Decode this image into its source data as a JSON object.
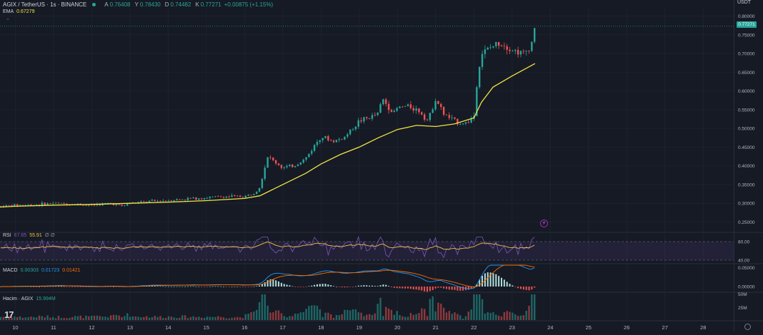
{
  "header": {
    "symbol": "AGIX / TetherUS · 1s · BINANCE",
    "ohlc": [
      {
        "k": "A",
        "v": "0.76408"
      },
      {
        "k": "Y",
        "v": "0.78430"
      },
      {
        "k": "D",
        "v": "0.74482"
      },
      {
        "k": "K",
        "v": "0.77271"
      }
    ],
    "change": "+0.00875 (+1.15%)"
  },
  "ema": {
    "label": "EMA",
    "value": "0.67279"
  },
  "rsi": {
    "label": "RSI",
    "value1": "67.65",
    "value2": "55.91",
    "extra": "∅ ∅"
  },
  "macd": {
    "label": "MACD",
    "value1": "0.00303",
    "value2": "0.01723",
    "value3": "0.01421"
  },
  "volume": {
    "label": "Hacim · AGIX",
    "value": "15.994M"
  },
  "price_axis": {
    "currency": "USDT",
    "current_price": "0.77271",
    "ticks": [
      "0.80000",
      "0.75000",
      "0.70000",
      "0.65000",
      "0.60000",
      "0.55000",
      "0.50000",
      "0.45000",
      "0.40000",
      "0.35000",
      "0.30000",
      "0.25000"
    ]
  },
  "rsi_axis": [
    "80.00",
    "40.00"
  ],
  "macd_axis": [
    "0.05000",
    "0.00000"
  ],
  "volume_axis": [
    "50M",
    "25M"
  ],
  "time_axis": [
    "10",
    "11",
    "12",
    "13",
    "14",
    "15",
    "16",
    "17",
    "18",
    "19",
    "20",
    "21",
    "22",
    "23",
    "24",
    "25",
    "26",
    "27",
    "28"
  ],
  "colors": {
    "up": "#26a69a",
    "down": "#ef5350",
    "ema": "#f0e442",
    "rsi": "#7e57c2",
    "rsi_ma": "#f0c040",
    "macd": "#2196f3",
    "signal": "#ff6d00"
  },
  "chart_data": {
    "type": "line",
    "ylim": [
      0.23,
      0.82
    ],
    "x_range": [
      9.6,
      28.8
    ],
    "series": [
      {
        "x": [
          9.6,
          10.0,
          10.5,
          11.0,
          11.5,
          12.0,
          12.5,
          12.8,
          13.0,
          13.5,
          14.0,
          14.5,
          15.0,
          15.5,
          16.0,
          16.2,
          16.4,
          16.5,
          16.6,
          17.0,
          17.3,
          17.6,
          18.0,
          18.3,
          18.6,
          19.0,
          19.3,
          19.5,
          19.6,
          19.9,
          20.0,
          20.3,
          20.6,
          20.8,
          21.0,
          21.1,
          21.2,
          21.4,
          21.6,
          21.8,
          22.0,
          22.1,
          22.2,
          22.5,
          22.7,
          23.0,
          23.3,
          23.5,
          23.6
        ],
        "y": [
          0.292,
          0.295,
          0.296,
          0.3,
          0.298,
          0.295,
          0.3,
          0.292,
          0.3,
          0.305,
          0.308,
          0.312,
          0.315,
          0.318,
          0.318,
          0.325,
          0.345,
          0.385,
          0.425,
          0.395,
          0.4,
          0.42,
          0.48,
          0.465,
          0.475,
          0.52,
          0.53,
          0.54,
          0.58,
          0.54,
          0.555,
          0.56,
          0.545,
          0.52,
          0.58,
          0.56,
          0.54,
          0.525,
          0.515,
          0.515,
          0.53,
          0.64,
          0.7,
          0.72,
          0.73,
          0.71,
          0.7,
          0.72,
          0.78
        ]
      },
      {
        "name": "EMA",
        "x": [
          9.6,
          10.0,
          11.0,
          12.0,
          13.0,
          14.0,
          15.0,
          16.0,
          16.4,
          16.8,
          17.2,
          17.6,
          18.0,
          18.5,
          19.0,
          19.5,
          20.0,
          20.5,
          21.0,
          21.5,
          22.0,
          22.2,
          22.5,
          23.0,
          23.6
        ],
        "y": [
          0.29,
          0.292,
          0.295,
          0.297,
          0.3,
          0.303,
          0.307,
          0.313,
          0.32,
          0.34,
          0.36,
          0.38,
          0.405,
          0.43,
          0.45,
          0.475,
          0.497,
          0.508,
          0.505,
          0.512,
          0.528,
          0.57,
          0.61,
          0.64,
          0.673
        ]
      }
    ]
  }
}
